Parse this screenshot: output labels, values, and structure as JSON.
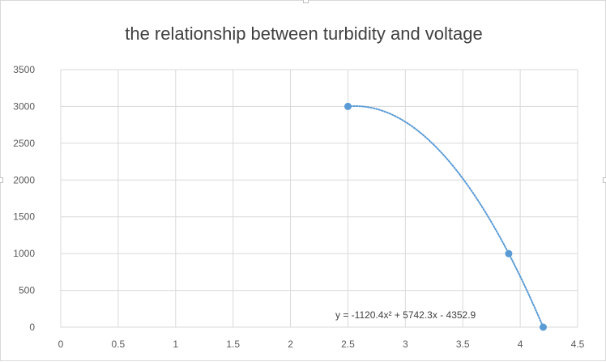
{
  "chart_data": {
    "type": "scatter",
    "title": "the relationship between turbidity and voltage",
    "xlabel": "",
    "ylabel": "",
    "xlim": [
      0,
      4.5
    ],
    "ylim": [
      0,
      3500
    ],
    "x_ticks": [
      "0",
      "0.5",
      "1",
      "1.5",
      "2",
      "2.5",
      "3",
      "3.5",
      "4",
      "4.5"
    ],
    "y_ticks": [
      "0",
      "500",
      "1000",
      "1500",
      "2000",
      "2500",
      "3000",
      "3500"
    ],
    "grid": true,
    "series": [
      {
        "points": [
          {
            "x": 2.5,
            "y": 3000
          },
          {
            "x": 3.9,
            "y": 1000
          },
          {
            "x": 4.2,
            "y": 0
          }
        ],
        "color": "#5b9bd5"
      }
    ],
    "trendline": {
      "kind": "polynomial-2",
      "equation": "y = -1120.4x² + 5742.3x - 4352.9",
      "coefficients": {
        "a": -1120.4,
        "b": 5742.3,
        "c": -4352.9
      },
      "color": "#5b9bd5",
      "style": "dotted"
    }
  }
}
